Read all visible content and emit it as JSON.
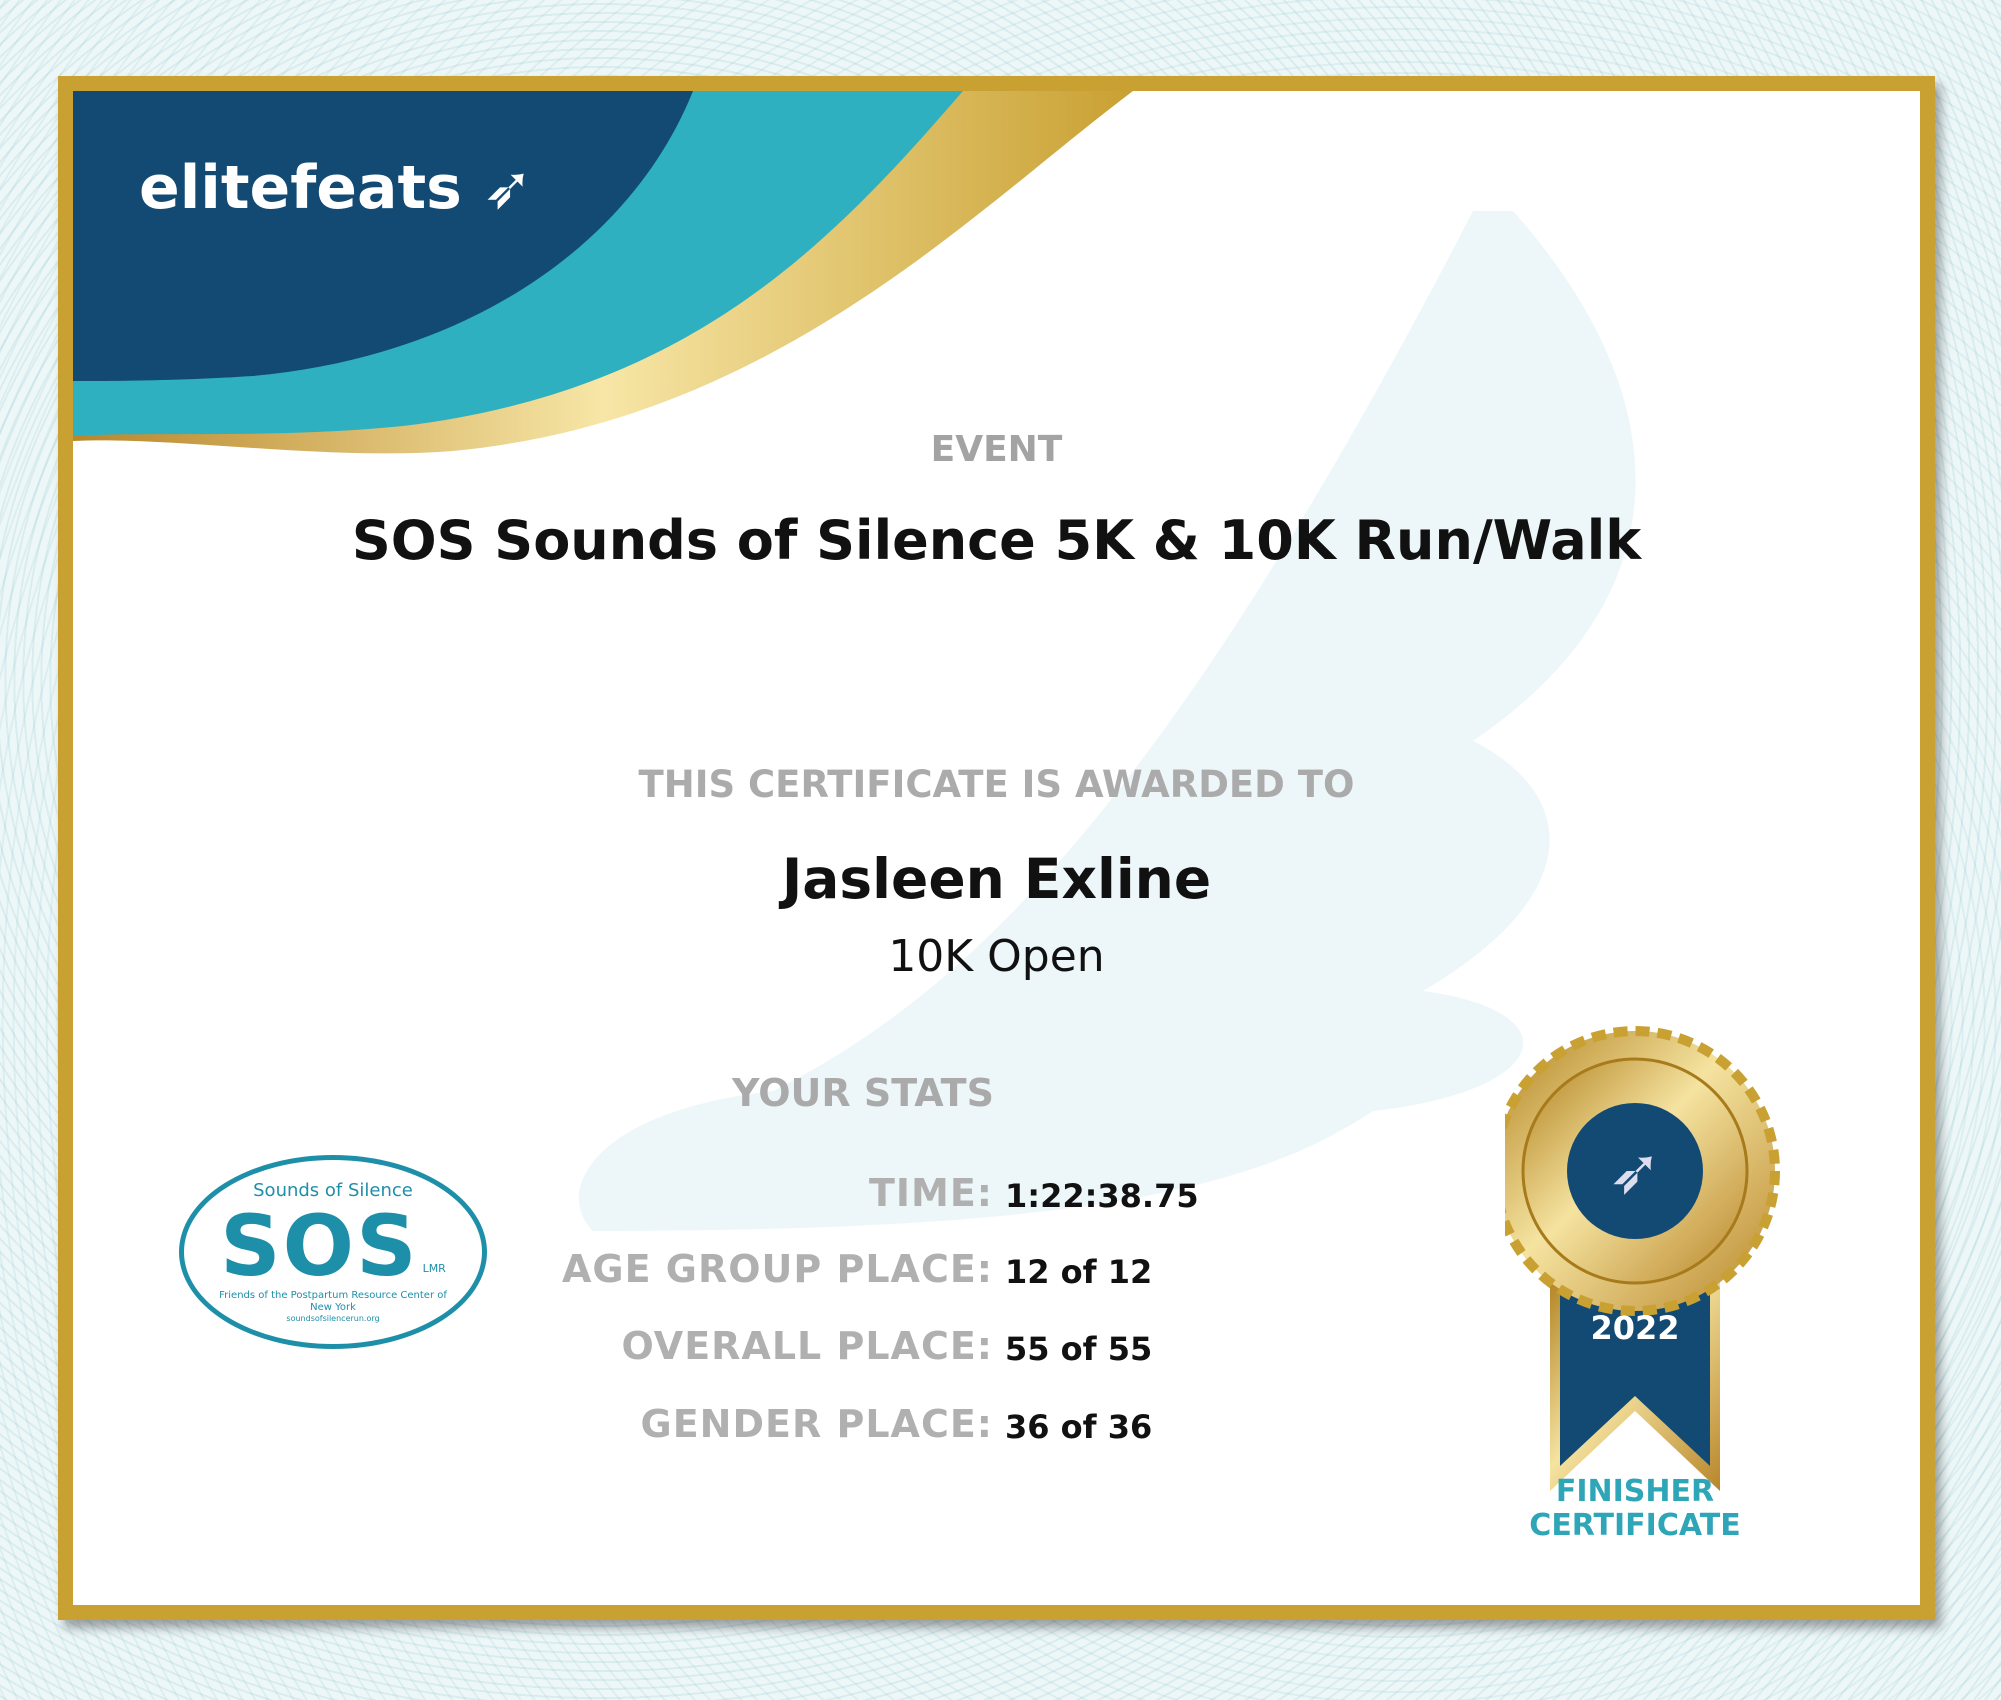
{
  "brand": {
    "logo_text": "elitefeats"
  },
  "event": {
    "label": "EVENT",
    "name": "SOS Sounds of Silence 5K & 10K Run/Walk"
  },
  "award": {
    "label": "THIS CERTIFICATE IS AWARDED TO",
    "name": "Jasleen Exline",
    "division": "10K Open"
  },
  "stats": {
    "label": "YOUR STATS",
    "rows": [
      {
        "label": "TIME:",
        "value": "1:22:38.75"
      },
      {
        "label": "AGE GROUP PLACE:",
        "value": "12 of 12"
      },
      {
        "label": "OVERALL PLACE:",
        "value": "55 of 55"
      },
      {
        "label": "GENDER PLACE:",
        "value": "36 of 36"
      }
    ]
  },
  "sponsor_logo": {
    "top": "Sounds of Silence",
    "main": "SOS",
    "mark": "LMR",
    "bottom": "Friends of the Postpartum Resource Center of New York",
    "url": "soundsofsilencerun.org"
  },
  "medal": {
    "year": "2022",
    "caption_line1": "FINISHER",
    "caption_line2": "CERTIFICATE"
  },
  "colors": {
    "navy": "#124a73",
    "teal": "#2fb0c0",
    "gold": "#c9a032",
    "logo_teal": "#1e8fa8"
  }
}
